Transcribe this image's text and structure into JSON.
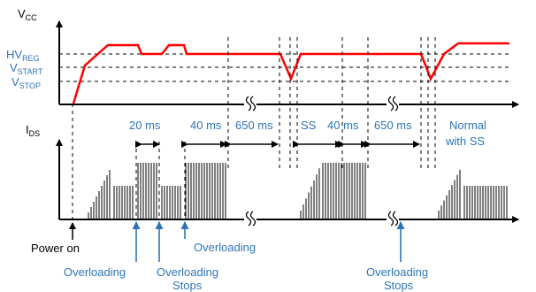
{
  "axes": {
    "vcc": {
      "main": "V",
      "sub": "CC"
    },
    "ids": {
      "main": "I",
      "sub": "DS"
    }
  },
  "levels": {
    "hvreg": {
      "main": "HV",
      "sub": "REG"
    },
    "vstart": {
      "main": "V",
      "sub": "START"
    },
    "vstop": {
      "main": "V",
      "sub": "STOP"
    }
  },
  "intervals": {
    "t20ms": "20 ms",
    "t40ms_a": "40 ms",
    "t650ms_a": "650 ms",
    "ss": "SS",
    "t40ms_b": "40 ms",
    "t650ms_b": "650 ms",
    "normal_line1": "Normal",
    "normal_line2": "with SS"
  },
  "events": {
    "power_on": "Power on",
    "overloading_1": "Overloading",
    "overloading_stops_1_line1": "Overloading",
    "overloading_stops_1_line2": "Stops",
    "overloading_2": "Overloading",
    "overloading_stops_2_line1": "Overloading",
    "overloading_stops_2_line2": "Stops"
  },
  "colors": {
    "vcc_trace": "#ff0000",
    "annotation": "#2e74b5",
    "axis": "#000000"
  }
}
